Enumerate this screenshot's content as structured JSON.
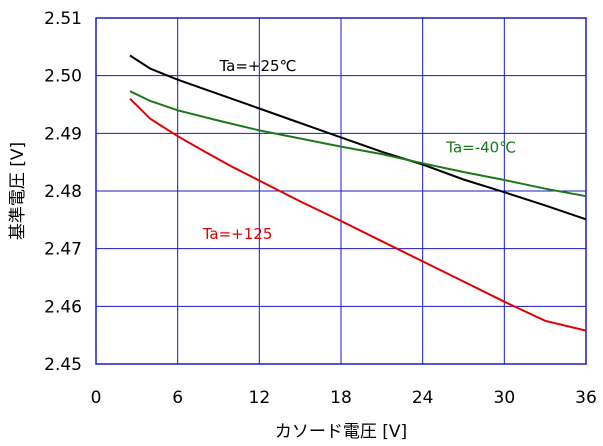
{
  "chart_data": {
    "type": "line",
    "title": "",
    "xlabel": "カソード電圧 [V]",
    "ylabel": "基準電圧 [V]",
    "xlim": [
      0,
      36
    ],
    "ylim": [
      2.45,
      2.51
    ],
    "x_ticks": [
      "0",
      "6",
      "12",
      "18",
      "24",
      "30",
      "36"
    ],
    "y_ticks": [
      "2.45",
      "2.46",
      "2.47",
      "2.48",
      "2.49",
      "2.50",
      "2.51"
    ],
    "grid": true,
    "legend": "none (inline series labels)",
    "series": [
      {
        "name": "Ta=+25℃",
        "color": "#000000",
        "x": [
          2.5,
          4,
          6,
          9,
          12,
          15,
          18,
          21,
          24,
          27,
          30,
          33,
          36
        ],
        "y": [
          2.5035,
          2.5012,
          2.4993,
          2.4968,
          2.4943,
          2.4918,
          2.4893,
          2.4868,
          2.4846,
          2.482,
          2.4798,
          2.4775,
          2.4751
        ]
      },
      {
        "name": "Ta=-40℃",
        "color": "#1a7a1a",
        "x": [
          2.5,
          4,
          6,
          9,
          12,
          15,
          18,
          21,
          24,
          27,
          30,
          33,
          36
        ],
        "y": [
          2.4973,
          2.4956,
          2.494,
          2.4922,
          2.4905,
          2.4891,
          2.4877,
          2.4864,
          2.4848,
          2.4833,
          2.4819,
          2.4804,
          2.4791
        ]
      },
      {
        "name": "Ta=+125",
        "color": "#e00000",
        "x": [
          2.5,
          4,
          6,
          8,
          10,
          12,
          15,
          18,
          21,
          24,
          27,
          30,
          33,
          36
        ],
        "y": [
          2.496,
          2.4925,
          2.4895,
          2.4868,
          2.4842,
          2.4818,
          2.4782,
          2.4748,
          2.4713,
          2.4678,
          2.4643,
          2.4608,
          2.4575,
          2.4558
        ]
      }
    ],
    "annotations": [
      {
        "text": "Ta=+25℃",
        "color": "#000000",
        "x": 11.9,
        "y": 2.5008
      },
      {
        "text": "Ta=-40℃",
        "color": "#1a7a1a",
        "x": 28.3,
        "y": 2.4867
      },
      {
        "text": "Ta=+125",
        "color": "#e00000",
        "x": 10.4,
        "y": 2.4717
      }
    ]
  }
}
